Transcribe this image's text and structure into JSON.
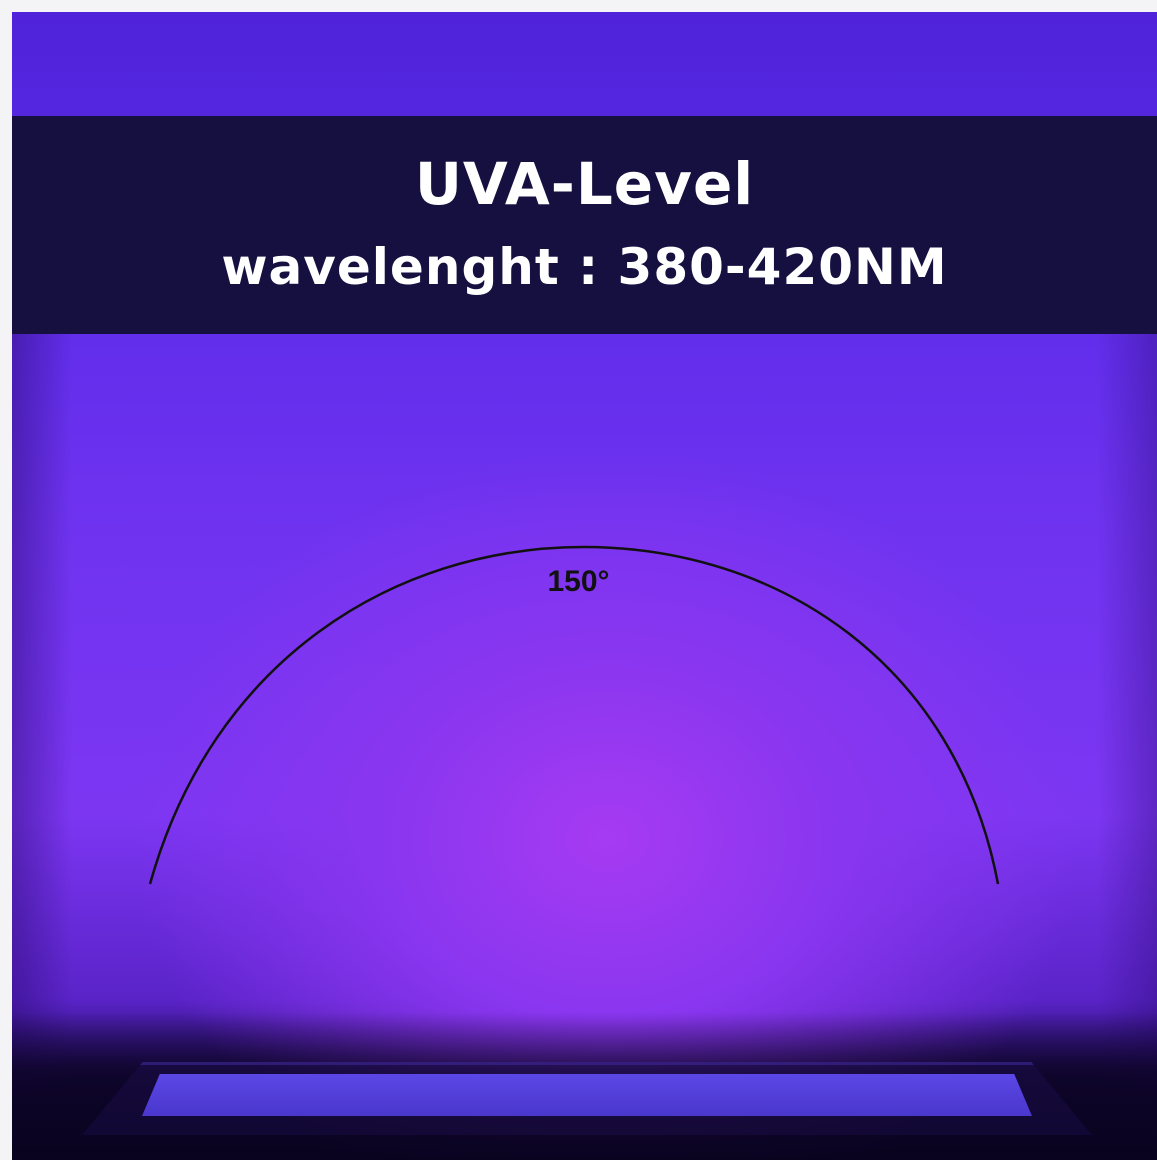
{
  "banner": {
    "title": "UVA-Level",
    "subtitle": "wavelenght : 380-420NM"
  },
  "beam": {
    "angle_label": "150°"
  },
  "colors": {
    "uv_purple": "#6f33f0",
    "banner_navy": "#161040",
    "text_white": "#ffffff",
    "arc_black": "#111111"
  }
}
